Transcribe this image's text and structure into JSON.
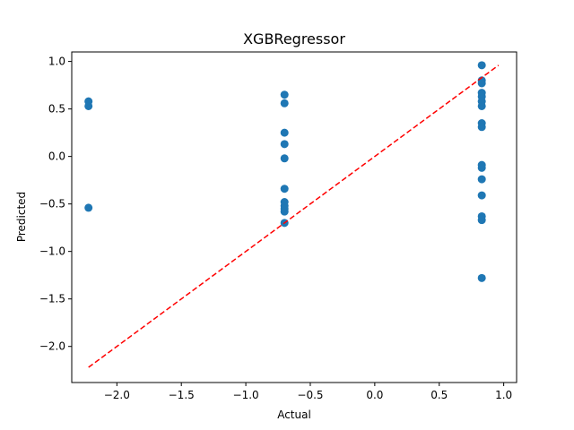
{
  "chart_data": {
    "type": "scatter",
    "title": "XGBRegressor",
    "xlabel": "Actual",
    "ylabel": "Predicted",
    "xlim": [
      -2.35,
      1.1
    ],
    "ylim": [
      -2.38,
      1.1
    ],
    "xticks": [
      -2.0,
      -1.5,
      -1.0,
      -0.5,
      0.0,
      0.5,
      1.0
    ],
    "xtick_labels": [
      "−2.0",
      "−1.5",
      "−1.0",
      "−0.5",
      "0.0",
      "0.5",
      "1.0"
    ],
    "yticks": [
      -2.0,
      -1.5,
      -1.0,
      -0.5,
      0.0,
      0.5,
      1.0
    ],
    "ytick_labels": [
      "−2.0",
      "−1.5",
      "−1.0",
      "−0.5",
      "0.0",
      "0.5",
      "1.0"
    ],
    "grid": false,
    "series": [
      {
        "marker_color": "#1f77b4",
        "points": [
          {
            "x": -2.22,
            "y": 0.58
          },
          {
            "x": -2.22,
            "y": 0.53
          },
          {
            "x": -2.22,
            "y": -0.54
          },
          {
            "x": -0.7,
            "y": 0.65
          },
          {
            "x": -0.7,
            "y": 0.56
          },
          {
            "x": -0.7,
            "y": 0.25
          },
          {
            "x": -0.7,
            "y": 0.13
          },
          {
            "x": -0.7,
            "y": -0.02
          },
          {
            "x": -0.7,
            "y": -0.34
          },
          {
            "x": -0.7,
            "y": -0.48
          },
          {
            "x": -0.7,
            "y": -0.52
          },
          {
            "x": -0.7,
            "y": -0.55
          },
          {
            "x": -0.7,
            "y": -0.58
          },
          {
            "x": -0.7,
            "y": -0.7
          },
          {
            "x": 0.83,
            "y": 0.96
          },
          {
            "x": 0.83,
            "y": 0.8
          },
          {
            "x": 0.83,
            "y": 0.77
          },
          {
            "x": 0.83,
            "y": 0.67
          },
          {
            "x": 0.83,
            "y": 0.63
          },
          {
            "x": 0.83,
            "y": 0.58
          },
          {
            "x": 0.83,
            "y": 0.53
          },
          {
            "x": 0.83,
            "y": 0.35
          },
          {
            "x": 0.83,
            "y": 0.31
          },
          {
            "x": 0.83,
            "y": -0.09
          },
          {
            "x": 0.83,
            "y": -0.12
          },
          {
            "x": 0.83,
            "y": -0.24
          },
          {
            "x": 0.83,
            "y": -0.41
          },
          {
            "x": 0.83,
            "y": -0.63
          },
          {
            "x": 0.83,
            "y": -0.67
          },
          {
            "x": 0.83,
            "y": -1.28
          }
        ]
      }
    ],
    "reference_line": {
      "style": "dashed",
      "color": "#ff0000",
      "from": [
        -2.22,
        -2.22
      ],
      "to": [
        0.96,
        0.96
      ]
    }
  }
}
